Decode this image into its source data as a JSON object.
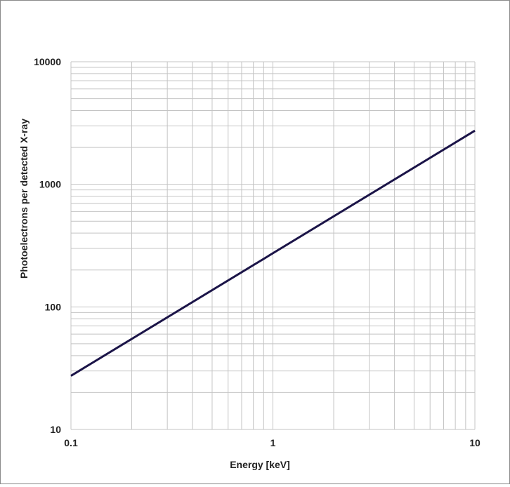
{
  "chart_data": {
    "type": "line",
    "title": "",
    "xlabel": "Energy [keV]",
    "ylabel": "Photoelectrons per detected X-ray",
    "xscale": "log",
    "yscale": "log",
    "xlim": [
      0.1,
      10
    ],
    "ylim": [
      10,
      10000
    ],
    "grid": true,
    "legend": "none",
    "x_ticks": [
      "0.1",
      "1",
      "10"
    ],
    "y_ticks": [
      "10",
      "100",
      "1000",
      "10000"
    ],
    "series": [
      {
        "x": [
          0.1,
          10
        ],
        "y": [
          27.4,
          2740
        ],
        "color": "#1b1448"
      }
    ],
    "colors": {
      "grid": "#c4c4c4",
      "line": "#1b1448",
      "text": "#222222"
    }
  }
}
